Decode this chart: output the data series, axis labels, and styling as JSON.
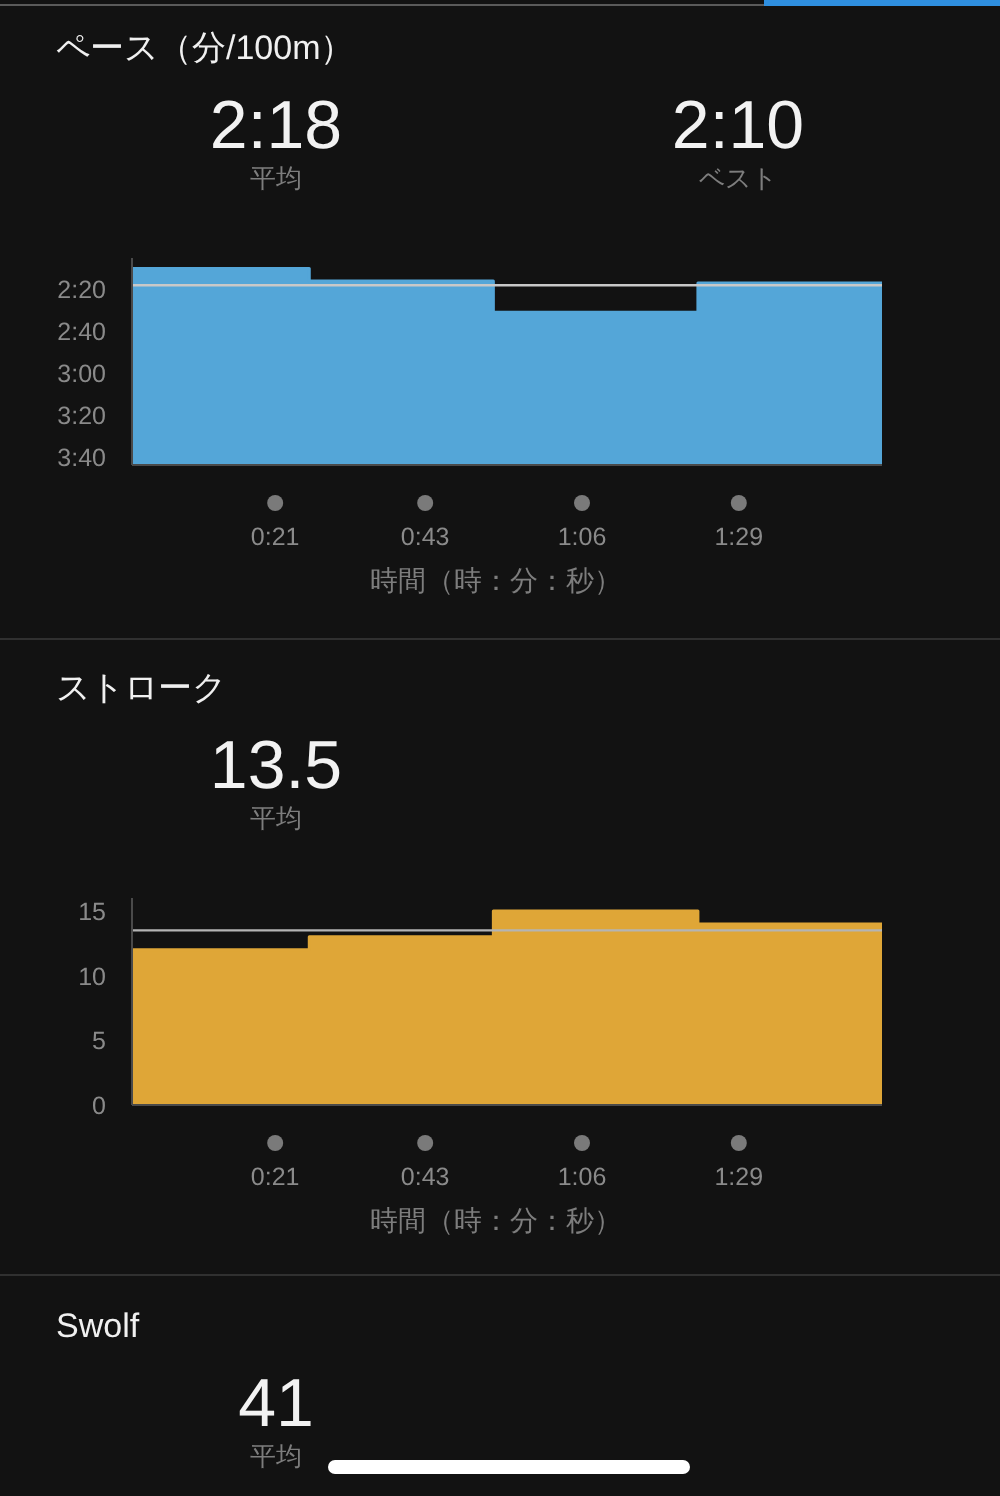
{
  "chart_data": [
    {
      "type": "step",
      "title": "ペース（分/100m）",
      "annotations": [
        "2:18",
        "平均",
        "2:10",
        "ベスト"
      ],
      "xlabel": "時間（時：分：秒）",
      "x": [
        0,
        26,
        53,
        83,
        110
      ],
      "values": [
        130,
        136,
        151,
        137,
        137
      ],
      "color": "#54a6d8",
      "xlim": [
        0,
        110
      ],
      "xticks": [
        {
          "value": 21,
          "label": "0:21"
        },
        {
          "value": 43,
          "label": "0:43"
        },
        {
          "value": 66,
          "label": "1:06"
        },
        {
          "value": 89,
          "label": "1:29"
        }
      ],
      "ylim": [
        224,
        125
      ],
      "yticks": [
        {
          "value": 140,
          "label": "2:20"
        },
        {
          "value": 160,
          "label": "2:40"
        },
        {
          "value": 180,
          "label": "3:00"
        },
        {
          "value": 200,
          "label": "3:20"
        },
        {
          "value": 220,
          "label": "3:40"
        }
      ],
      "ref_lines": [
        {
          "axis": "y",
          "value": 138,
          "color": "#c8c8c8"
        }
      ]
    },
    {
      "type": "step",
      "title": "ストローク",
      "annotations": [
        "13.5",
        "平均"
      ],
      "xlabel": "時間（時：分：秒）",
      "x": [
        0,
        26,
        53,
        83,
        110
      ],
      "values": [
        12,
        13,
        15,
        14,
        14
      ],
      "color": "#dfa637",
      "xlim": [
        0,
        110
      ],
      "xticks": [
        {
          "value": 21,
          "label": "0:21"
        },
        {
          "value": 43,
          "label": "0:43"
        },
        {
          "value": 66,
          "label": "1:06"
        },
        {
          "value": 89,
          "label": "1:29"
        }
      ],
      "ylim": [
        0,
        16
      ],
      "yticks": [
        0,
        5,
        10,
        15
      ],
      "ref_lines": [
        {
          "axis": "y",
          "value": 13.5,
          "color": "#b4b4b4"
        }
      ]
    },
    {
      "type": "other",
      "title": "Swolf",
      "annotations": [
        "41",
        "平均"
      ]
    }
  ]
}
